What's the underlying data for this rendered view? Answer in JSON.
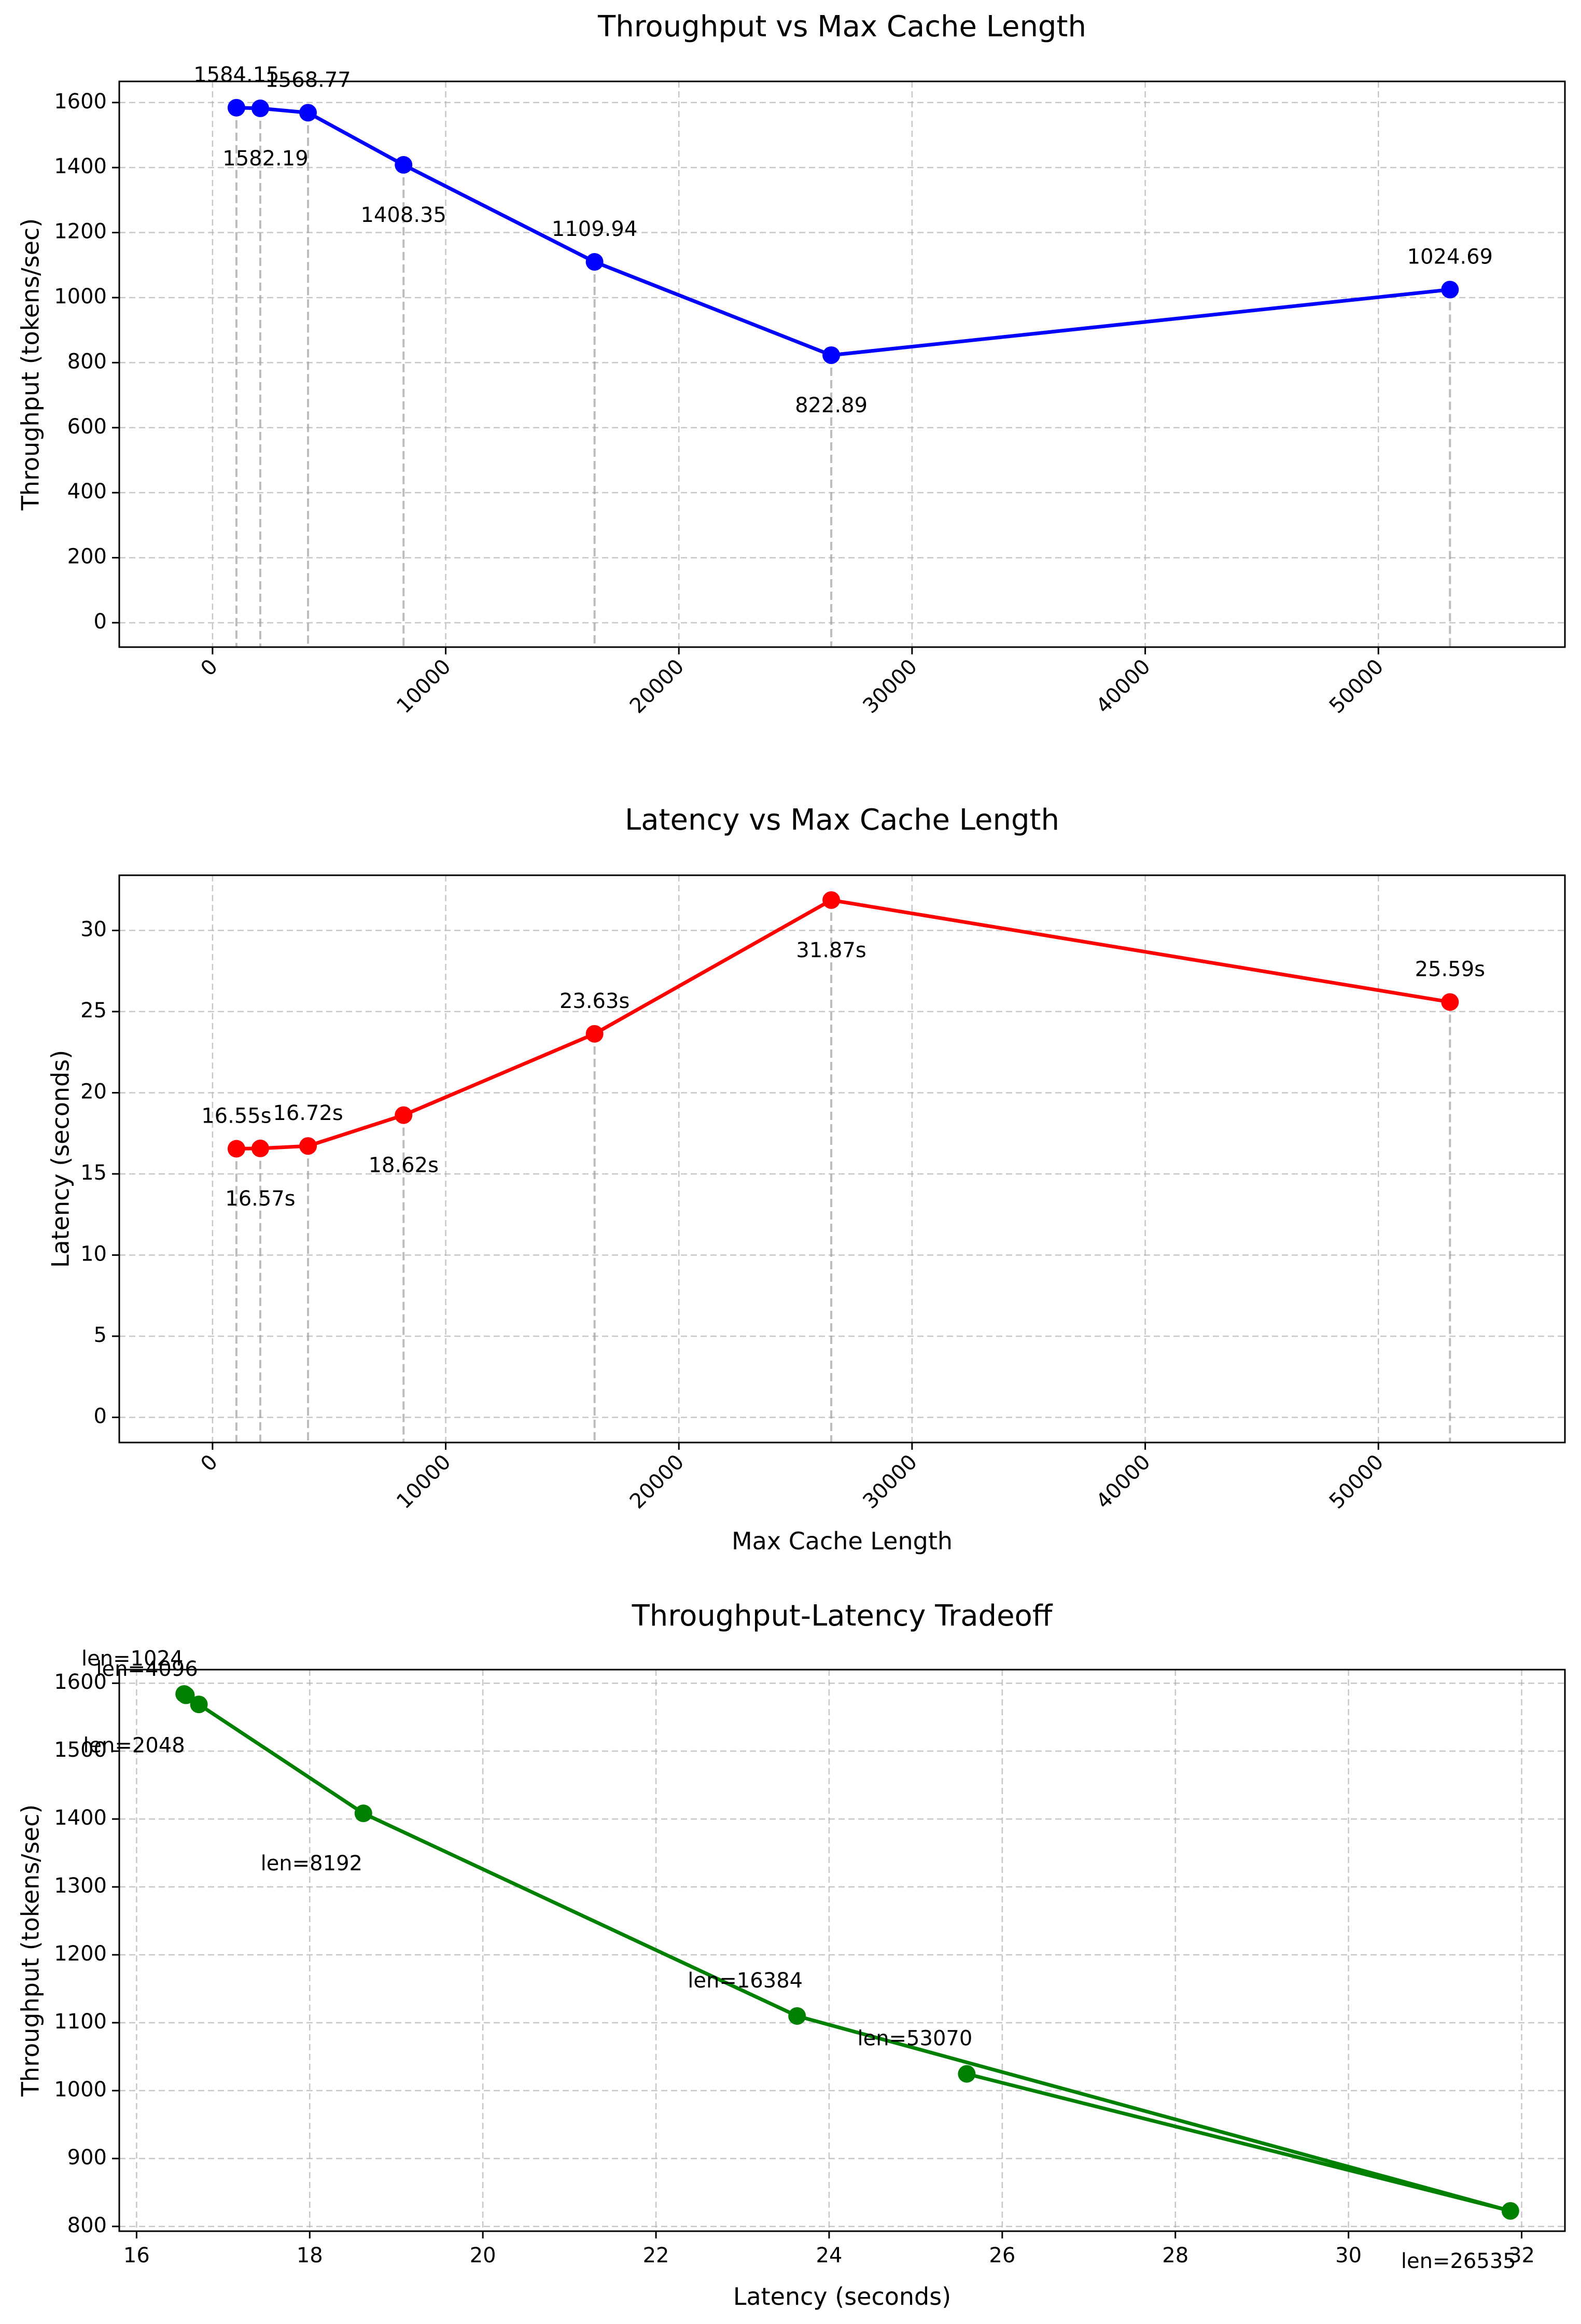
{
  "chart_data": [
    {
      "type": "line",
      "title": "Throughput vs Max Cache Length",
      "xlabel": "",
      "ylabel": "Throughput (tokens/sec)",
      "x": [
        1024,
        2048,
        4096,
        8192,
        16384,
        26535,
        53070
      ],
      "series": [
        {
          "values": [
            1584.15,
            1582.19,
            1568.77,
            1408.35,
            1109.94,
            822.89,
            1024.69
          ],
          "color": "#0000ff"
        }
      ],
      "data_labels": [
        "1584.15",
        "1582.19",
        "1568.77",
        "1408.35",
        "1109.94",
        "822.89",
        "1024.69"
      ],
      "xlim": [
        -4000,
        58000
      ],
      "ylim": [
        -75,
        1665
      ],
      "xticks": [
        0,
        10000,
        20000,
        30000,
        40000,
        50000
      ],
      "yticks": [
        0,
        200,
        400,
        600,
        800,
        1000,
        1200,
        1400,
        1600
      ],
      "grid": true,
      "drop_lines": true
    },
    {
      "type": "line",
      "title": "Latency vs Max Cache Length",
      "xlabel": "Max Cache Length",
      "ylabel": "Latency (seconds)",
      "x": [
        1024,
        2048,
        4096,
        8192,
        16384,
        26535,
        53070
      ],
      "series": [
        {
          "values": [
            16.55,
            16.57,
            16.72,
            18.62,
            23.63,
            31.87,
            25.59
          ],
          "color": "#ff0000"
        }
      ],
      "data_labels": [
        "16.55s",
        "16.57s",
        "16.72s",
        "18.62s",
        "23.63s",
        "31.87s",
        "25.59s"
      ],
      "xlim": [
        -4000,
        58000
      ],
      "ylim": [
        -1.55,
        33.4
      ],
      "xticks": [
        0,
        10000,
        20000,
        30000,
        40000,
        50000
      ],
      "yticks": [
        0,
        5,
        10,
        15,
        20,
        25,
        30
      ],
      "grid": true,
      "drop_lines": true
    },
    {
      "type": "line",
      "title": "Throughput-Latency Tradeoff",
      "xlabel": "Latency (seconds)",
      "ylabel": "Throughput (tokens/sec)",
      "series": [
        {
          "x": [
            16.55,
            16.57,
            16.72,
            18.62,
            23.63,
            31.87,
            25.59
          ],
          "values": [
            1584.15,
            1582.19,
            1568.77,
            1408.35,
            1109.94,
            822.89,
            1024.69
          ],
          "color": "#008000"
        }
      ],
      "data_labels": [
        "len=1024",
        "len=2048",
        "len=4096",
        "len=8192",
        "len=16384",
        "len=26535",
        "len=53070"
      ],
      "xlim": [
        15.8,
        32.5
      ],
      "ylim": [
        793,
        1620
      ],
      "xticks": [
        16,
        18,
        20,
        22,
        24,
        26,
        28,
        30,
        32
      ],
      "yticks": [
        800,
        900,
        1000,
        1100,
        1200,
        1300,
        1400,
        1500,
        1600
      ],
      "grid": true
    }
  ]
}
